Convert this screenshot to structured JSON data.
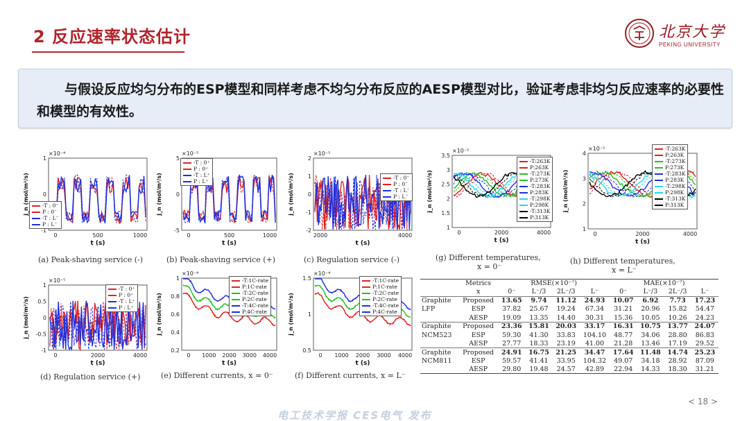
{
  "header": {
    "title": "2 反应速率状态估计",
    "logo_cn": "北京大学",
    "logo_en": "PEKING UNIVERSITY"
  },
  "intro": {
    "text": "与假设反应均匀分布的ESP模型和同样考虑不均匀分布反应的AESP模型对比，验证考虑非均匀反应速率的必要性和模型的有效性。"
  },
  "colors": {
    "accent": "#b0232a",
    "red": "#e02020",
    "blue": "#1a2fe0",
    "green": "#22c022",
    "cyan": "#22d8e8",
    "black": "#000000"
  },
  "panels": {
    "a": {
      "caption": "(a) Peak-shaving service (-)",
      "exp": "×10⁻⁴",
      "xlabel": "t (s)",
      "ylabel": "j_n (mol/m²/s)",
      "xticks": [
        "0",
        "500",
        "1000"
      ],
      "yticks": [
        "1",
        "0",
        "-1"
      ],
      "legend": [
        "-T : 0⁻",
        "P : 0⁻",
        "-T : L⁻",
        "P : L⁻"
      ]
    },
    "b": {
      "caption": "(b) Peak-shaving service (+)",
      "exp": "×10⁻⁵",
      "xlabel": "t (s)",
      "ylabel": "j_n (mol/m²/s)",
      "xticks": [
        "0",
        "500",
        "1000"
      ],
      "yticks": [
        "5",
        "0",
        "-5"
      ],
      "legend": [
        "-T : 0⁺",
        "P : 0⁺",
        "-T : L⁺",
        "P : L⁺"
      ]
    },
    "c": {
      "caption": "(c) Regulation service (-)",
      "exp": "×10⁻⁵",
      "xlabel": "t (s)",
      "ylabel": "j_n (mol/m²/s)",
      "xticks": [
        "2000",
        "4000"
      ],
      "yticks": [
        "2",
        "1",
        "0",
        "-1",
        "-2"
      ],
      "legend": [
        "-T : 0⁻",
        "P : 0⁻",
        "-T : L⁻",
        "P : L⁻"
      ]
    },
    "d": {
      "caption": "(d) Regulation service (+)",
      "exp": "×10⁻⁵",
      "xlabel": "t (s)",
      "ylabel": "j_n (mol/m²/s)",
      "xticks": [
        "0",
        "2000",
        "4000"
      ],
      "yticks": [
        "1",
        "0.5",
        "0",
        "-0.5",
        "-1"
      ],
      "legend": [
        "-T : 0⁺",
        "P : 0⁺",
        "-T : L⁺",
        "P : L⁺"
      ]
    },
    "e": {
      "caption": "(e) Different currents, x = 0⁻",
      "exp": "×10⁻⁴",
      "xlabel": "t (s)",
      "ylabel": "j_n (mol/m²/s)",
      "xticks": [
        "0",
        "1000",
        "2000",
        "3000",
        "4000"
      ],
      "yticks": [
        "1",
        "0.8",
        "0.6",
        "0.4",
        "0.2"
      ],
      "legend": [
        "-T:1C-rate",
        "P:1C-rate",
        "-T:2C-rate",
        "P:2C-rate",
        "-T:4C-rate",
        "P:4C-rate"
      ]
    },
    "f": {
      "caption": "(f) Different currents, x = L⁻",
      "exp": "×10⁻⁴",
      "xlabel": "t (s)",
      "ylabel": "j_n (mol/m²/s)",
      "xticks": [
        "0",
        "1000",
        "2000",
        "3000",
        "4000"
      ],
      "yticks": [
        "1.5",
        "1",
        "0.5"
      ],
      "legend": [
        "-T:1C-rate",
        "P:1C-rate",
        "-T:2C-rate",
        "P:2C-rate",
        "-T:4C-rate",
        "P:4C-rate"
      ]
    },
    "g": {
      "caption": "(g) Different temperatures,",
      "caption2": "x = 0⁻",
      "exp": "×10⁻⁵",
      "xlabel": "t (s)",
      "ylabel": "j_n (mol/m²/s)",
      "xticks": [
        "0",
        "2000",
        "4000"
      ],
      "yticks": [
        "3.5",
        "3",
        "2.5",
        "2",
        "1.5",
        "1"
      ],
      "legend": [
        "-T:263K",
        "P:263K",
        "-T:273K",
        "P:273K",
        "-T:283K",
        "P:283K",
        "-T:298K",
        "P:298K",
        "-T:313K",
        "P:313K"
      ]
    },
    "h": {
      "caption": "(h) Different temperatures,",
      "caption2": "x = L⁻",
      "exp": "×10⁻⁵",
      "xlabel": "t (s)",
      "ylabel": "j_n (mol/m²/s)",
      "xticks": [
        "0",
        "2000",
        "4000"
      ],
      "yticks": [
        "4",
        "3",
        "2",
        "1"
      ],
      "legend": [
        "-T:263K",
        "P:263K",
        "-T:273K",
        "P:273K",
        "-T:283K",
        "P:283K",
        "-T:298K",
        "P:298K",
        "-T:313K",
        "P:313K"
      ]
    }
  },
  "table": {
    "h1": [
      "Metrics",
      "RMSE(×10⁻⁷)",
      "MAE(×10⁻⁷)"
    ],
    "h2": [
      "x",
      "0⁻",
      "L⁻/3",
      "2L⁻/3",
      "L⁻",
      "0⁻",
      "L⁻/3",
      "2L⁻/3",
      "L⁻"
    ],
    "groups": [
      {
        "name1": "Graphite",
        "name2": "LFP",
        "rows": [
          {
            "m": "Proposed",
            "v": [
              "13.65",
              "9.74",
              "11.12",
              "24.93",
              "10.07",
              "6.92",
              "7.73",
              "17.23"
            ],
            "bold": [
              true,
              true,
              true,
              true,
              true,
              true,
              true,
              true
            ]
          },
          {
            "m": "ESP",
            "v": [
              "37.82",
              "25.67",
              "19.24",
              "67.34",
              "31.21",
              "20.96",
              "15.82",
              "54.47"
            ],
            "bold": [
              false,
              false,
              false,
              false,
              false,
              false,
              false,
              false
            ]
          },
          {
            "m": "AESP",
            "v": [
              "19.09",
              "13.35",
              "14.40",
              "30.31",
              "15.36",
              "10.05",
              "10.26",
              "24.23"
            ],
            "bold": [
              false,
              false,
              false,
              false,
              false,
              false,
              false,
              false
            ]
          }
        ]
      },
      {
        "name1": "Graphite",
        "name2": "NCM523",
        "rows": [
          {
            "m": "Proposed",
            "v": [
              "23.36",
              "15.81",
              "20.03",
              "33.17",
              "16.31",
              "10.75",
              "13.77",
              "24.07"
            ],
            "bold": [
              true,
              true,
              true,
              true,
              true,
              true,
              true,
              true
            ]
          },
          {
            "m": "ESP",
            "v": [
              "59.30",
              "41.30",
              "33.83",
              "104.10",
              "48.77",
              "34.06",
              "28.80",
              "86.83"
            ],
            "bold": [
              false,
              false,
              false,
              false,
              false,
              false,
              false,
              false
            ]
          },
          {
            "m": "AESP",
            "v": [
              "27.77",
              "18.33",
              "23.19",
              "41.00",
              "21.28",
              "13.46",
              "17.19",
              "29.52"
            ],
            "bold": [
              false,
              false,
              false,
              false,
              false,
              false,
              false,
              false
            ]
          }
        ]
      },
      {
        "name1": "Graphite",
        "name2": "NCM811",
        "rows": [
          {
            "m": "Proposed",
            "v": [
              "24.91",
              "16.75",
              "21.25",
              "34.47",
              "17.64",
              "11.48",
              "14.74",
              "25.23"
            ],
            "bold": [
              true,
              true,
              true,
              true,
              true,
              true,
              true,
              true
            ]
          },
          {
            "m": "ESP",
            "v": [
              "59.57",
              "41.41",
              "33.95",
              "104.32",
              "49.07",
              "34.18",
              "28.92",
              "87.09"
            ],
            "bold": [
              false,
              false,
              false,
              false,
              false,
              false,
              false,
              false
            ]
          },
          {
            "m": "AESP",
            "v": [
              "29.80",
              "19.48",
              "24.57",
              "42.89",
              "22.94",
              "14.33",
              "18.30",
              "31.21"
            ],
            "bold": [
              false,
              false,
              false,
              false,
              false,
              false,
              false,
              false
            ]
          }
        ]
      }
    ]
  },
  "footer": {
    "page": "< 18 >",
    "watermark": "电工技术学报 CES电气 发布"
  }
}
